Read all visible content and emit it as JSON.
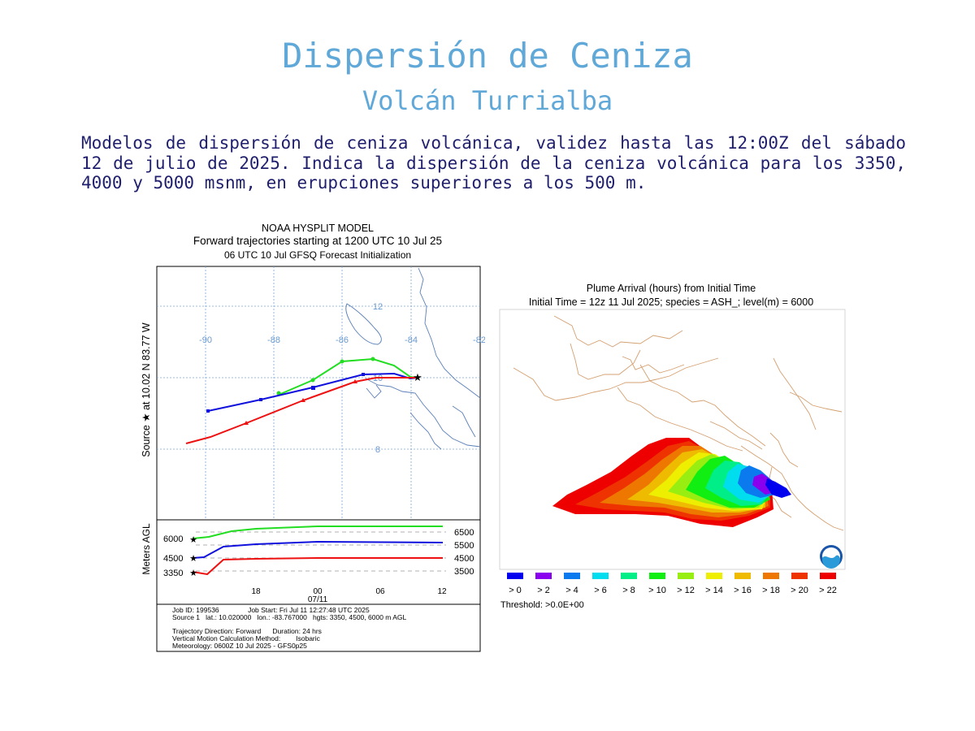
{
  "header": {
    "title": "Dispersión de Ceniza",
    "subtitle": "Volcán Turrialba",
    "description": "Modelos de dispersión de ceniza volcánica, validez hasta las 12:00Z del sábado 12 de julio de 2025. Indica la dispersión de la ceniza volcánica para los 3350, 4000 y 5000 msnm, en erupciones superiores a los 500 m."
  },
  "trajectory_chart": {
    "title_lines": [
      "NOAA HYSPLIT MODEL",
      "Forward trajectories starting at 1200 UTC 10 Jul 25",
      "06 UTC 10 Jul    GFSQ  Forecast Initialization"
    ],
    "source_label": "Source ★ at   10.02 N   83.77 W",
    "lon_ticks": [
      "-90",
      "-88",
      "-86",
      "-84",
      "-82"
    ],
    "lat_ticks": [
      "12",
      "10",
      "8"
    ],
    "height_axis_label": "Meters AGL",
    "height_left_labels": [
      "6000",
      "4500",
      "3350"
    ],
    "height_right_labels": [
      "6500",
      "5500",
      "4500",
      "3500"
    ],
    "time_ticks": [
      "18",
      "00",
      "06",
      "12"
    ],
    "date_label": "07/11",
    "info_lines": [
      "Job ID: 199536               Job Start: Fri Jul 11 12:27:48 UTC 2025",
      "Source 1   lat.: 10.020000   lon.: -83.767000   hgts: 3350, 4500, 6000 m AGL",
      "Trajectory Direction: Forward      Duration: 24 hrs",
      "Vertical Motion Calculation Method:        Isobaric",
      "Meteorology: 0600Z 10 Jul 2025 - GFS0p25"
    ],
    "series_colors": {
      "high": "#22dd22",
      "mid": "#1111dd",
      "low": "#ee1111"
    }
  },
  "plume_map": {
    "title_line1": "Plume Arrival (hours) from Initial Time",
    "title_line2": "Initial Time = 12z 11 Jul 2025;  species = ASH_;  level(m) =  6000",
    "legend": [
      {
        "label": "> 0",
        "color": "#0000ee"
      },
      {
        "label": "> 2",
        "color": "#8a00ee"
      },
      {
        "label": "> 4",
        "color": "#0a7aee"
      },
      {
        "label": "> 6",
        "color": "#00ddee"
      },
      {
        "label": "> 8",
        "color": "#00ee88"
      },
      {
        "label": "> 10",
        "color": "#11ee11"
      },
      {
        "label": "> 12",
        "color": "#99ee11"
      },
      {
        "label": "> 14",
        "color": "#eeee00"
      },
      {
        "label": "> 16",
        "color": "#eebb00"
      },
      {
        "label": "> 18",
        "color": "#ee7700"
      },
      {
        "label": "> 20",
        "color": "#ee3300"
      },
      {
        "label": "> 22",
        "color": "#ee0000"
      }
    ],
    "threshold": "Threshold: >0.0E+00"
  }
}
